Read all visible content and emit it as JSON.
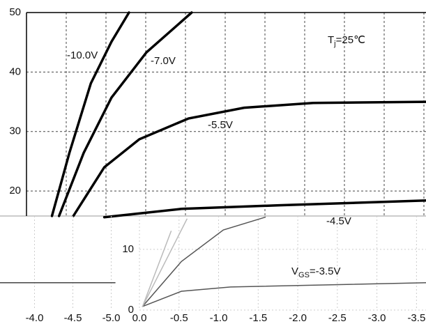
{
  "chart_data": [
    {
      "type": "line",
      "xlim": [
        0,
        -5.03
      ],
      "ylim": [
        15.8,
        50
      ],
      "yticks": [
        20,
        30,
        40,
        50
      ],
      "grid": true,
      "series": [
        {
          "color": "#000000",
          "x": [
            -0.32,
            -0.54,
            -0.81,
            -1.07,
            -1.29
          ],
          "values": [
            15.8,
            26.4,
            38.1,
            45.1,
            50
          ]
        },
        {
          "color": "#000000",
          "x": [
            -0.41,
            -0.72,
            -1.07,
            -1.51,
            -2.08
          ],
          "values": [
            15.8,
            26.4,
            35.7,
            43.3,
            50
          ]
        },
        {
          "color": "#000000",
          "x": [
            -0.59,
            -0.98,
            -1.42,
            -2.04,
            -2.74,
            -3.61,
            -5.03
          ],
          "values": [
            15.8,
            24,
            28.7,
            32.2,
            34,
            34.8,
            35
          ]
        },
        {
          "color": "#000000",
          "x": [
            -0.98,
            -1.95,
            -3.18,
            -5.03
          ],
          "values": [
            15.6,
            17,
            17.6,
            18.4
          ]
        }
      ],
      "annotations": [
        "-10.0V",
        "-7.0V",
        "-5.5V"
      ],
      "tj": {
        "main": "T",
        "sub": "j",
        "rest": "=25℃"
      }
    },
    {
      "type": "line",
      "xlim": [
        0,
        -3.62
      ],
      "ylim": [
        0,
        15.5
      ],
      "yticks": [
        0,
        10
      ],
      "grid": true,
      "xticks": [
        {
          "value": 0,
          "label": "0.0"
        },
        -0.5,
        {
          "value": -1,
          "label": "-1.0"
        },
        -1.5,
        {
          "value": -2,
          "label": "-2.0"
        },
        -2.5,
        {
          "value": -3,
          "label": "-3.0"
        },
        -3.5
      ],
      "series": [
        {
          "color": "#555555",
          "x": [
            -0.04,
            -0.53,
            -1.15,
            -3.62
          ],
          "values": [
            0.6,
            3.1,
            3.8,
            4.5
          ]
        },
        {
          "color": "#555555",
          "x": [
            -0.04,
            -0.53,
            -1.06,
            -1.59
          ],
          "values": [
            0.6,
            8,
            13.2,
            15.3
          ]
        },
        {
          "color": "#bbbbbb",
          "x": [
            -0.04,
            -0.4
          ],
          "values": [
            0.6,
            13
          ]
        },
        {
          "color": "#bbbbbb",
          "x": [
            -0.04,
            -0.6
          ],
          "values": [
            0.6,
            15
          ]
        }
      ],
      "annotations": [
        "-4.5V"
      ],
      "vgs": {
        "main": "V",
        "sub": "GS",
        "rest": "=-3.5V"
      }
    },
    {
      "type": "line",
      "xlim": [
        -3.55,
        -5.05
      ],
      "ylim": [
        0,
        15.5
      ],
      "grid": true,
      "xticks": [
        {
          "value": -4,
          "label": "-4.0"
        },
        -4.5,
        {
          "value": -5,
          "label": "-5.0"
        }
      ],
      "series": [
        {
          "color": "#444444",
          "x": [
            -3.55,
            -5.05
          ],
          "values": [
            4.5,
            4.5
          ]
        }
      ]
    }
  ]
}
